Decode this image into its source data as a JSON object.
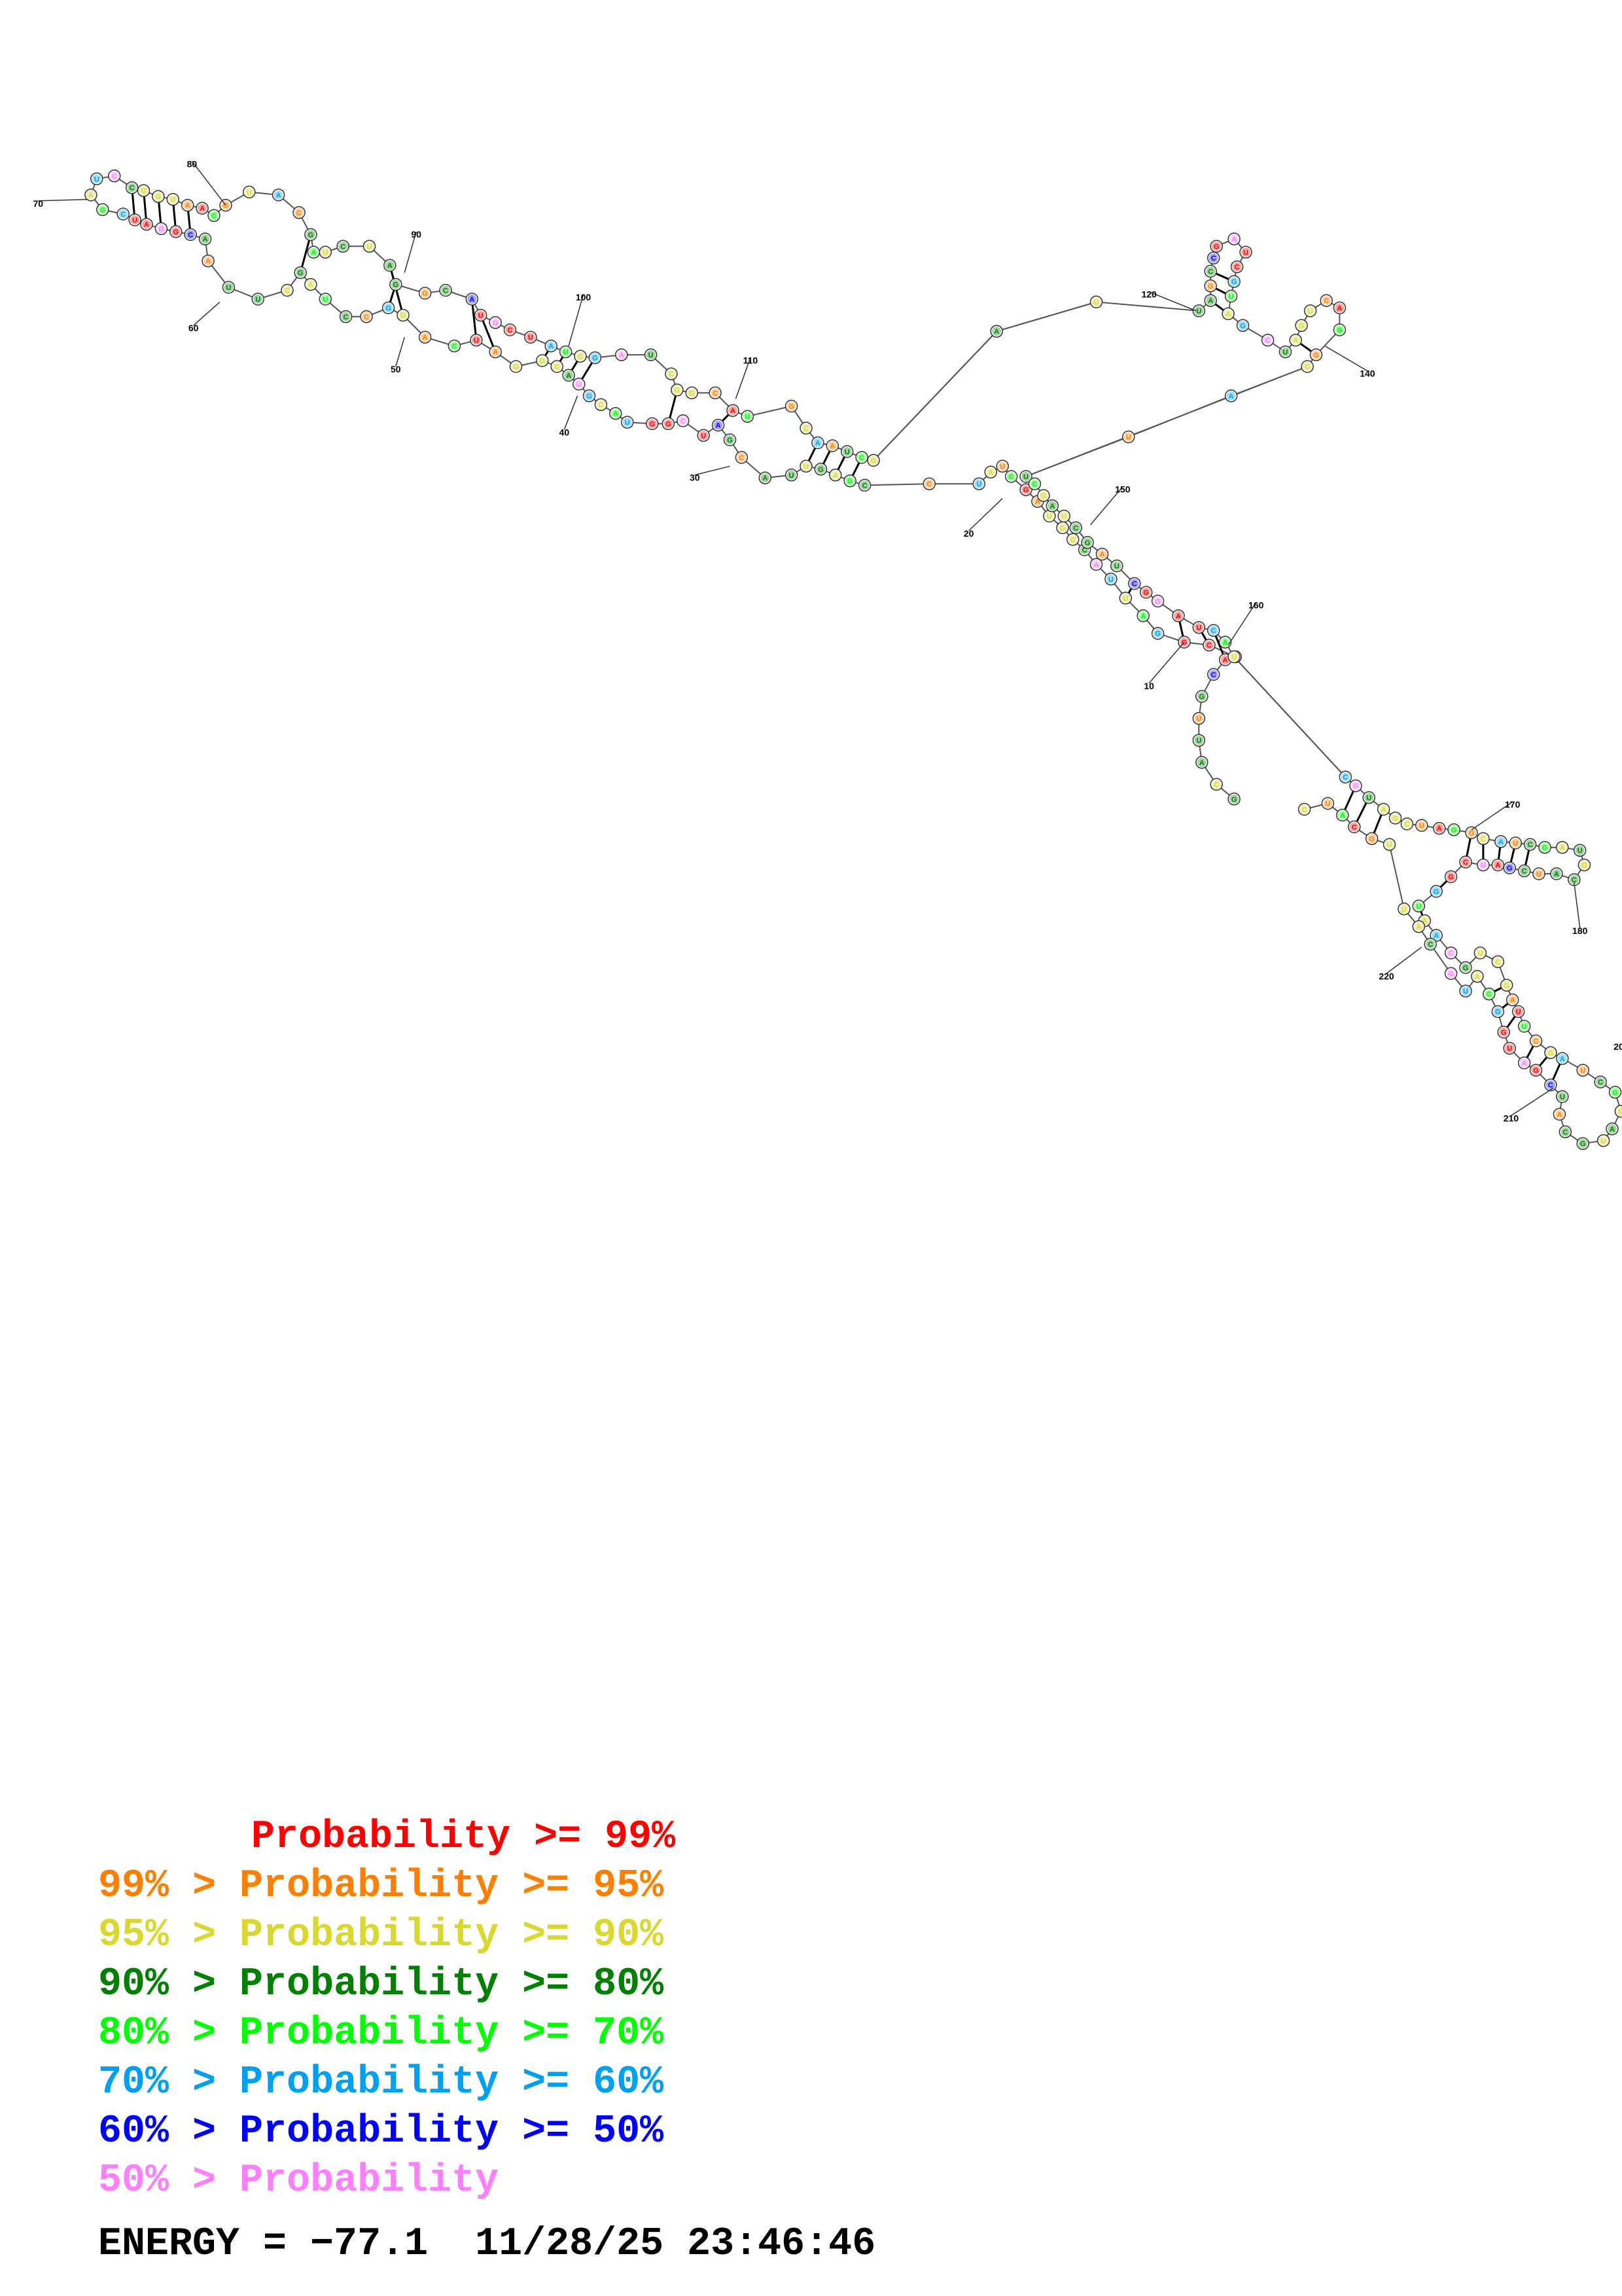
{
  "structure": {
    "position_labels": [
      "10",
      "20",
      "30",
      "40",
      "50",
      "60",
      "70",
      "80",
      "90",
      "100",
      "110",
      "120",
      "140",
      "150",
      "160",
      "170",
      "180",
      "210",
      "220"
    ],
    "truncated_label": "20"
  },
  "colors": {
    "p99": "#ff0000",
    "p95": "#ff8000",
    "p90": "#d8d830",
    "p80": "#008000",
    "p70": "#00ff00",
    "p60": "#00a0f0",
    "p50": "#0000ff",
    "below": "#ff80ff"
  },
  "legend": [
    {
      "prefix": "",
      "text": "Probability >= 99%",
      "color": "#ff0000"
    },
    {
      "prefix": "99% > ",
      "text": "Probability >= 95%",
      "color": "#ff8000"
    },
    {
      "prefix": "95% > ",
      "text": "Probability >= 90%",
      "color": "#d8d830"
    },
    {
      "prefix": "90% > ",
      "text": "Probability >= 80%",
      "color": "#008000"
    },
    {
      "prefix": "80% > ",
      "text": "Probability >= 70%",
      "color": "#00ff00"
    },
    {
      "prefix": "70% > ",
      "text": "Probability >= 60%",
      "color": "#00a0f0"
    },
    {
      "prefix": "60% > ",
      "text": "Probability >= 50%",
      "color": "#0000ff"
    },
    {
      "prefix": "50% > ",
      "text": "Probability",
      "color": "#ff80ff"
    }
  ],
  "footer": {
    "energy": "ENERGY = −77.1  11/28/25 23:46:46"
  }
}
